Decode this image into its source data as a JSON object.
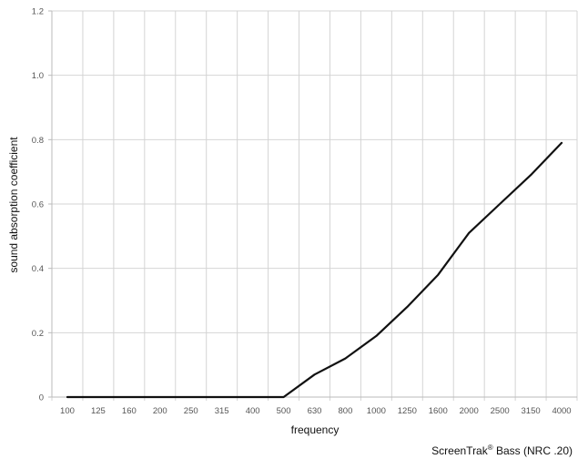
{
  "chart_data": {
    "type": "line",
    "title": "",
    "xlabel": "frequency",
    "ylabel": "sound absorption coefficient",
    "categories": [
      "100",
      "125",
      "160",
      "200",
      "250",
      "315",
      "400",
      "500",
      "630",
      "800",
      "1000",
      "1250",
      "1600",
      "2000",
      "2500",
      "3150",
      "4000"
    ],
    "series": [
      {
        "values": [
          0,
          0,
          0,
          0,
          0,
          0,
          0,
          0,
          0.07,
          0.12,
          0.19,
          0.28,
          0.38,
          0.51,
          0.6,
          0.69,
          0.79
        ]
      }
    ],
    "ylim": [
      0,
      1.2
    ],
    "yticks": [
      "0",
      "0.2",
      "0.4",
      "0.6",
      "0.8",
      "1.0",
      "1.2"
    ],
    "yticks_values": [
      0,
      0.2,
      0.4,
      0.6,
      0.8,
      1.0,
      1.2
    ],
    "grid": true,
    "colors": {
      "line": "#111111",
      "grid": "#d4d4d4",
      "axis": "#bbbbbb"
    }
  },
  "caption": {
    "product": "ScreenTrak",
    "mark": "®",
    "rest": " Bass (NRC .20)"
  }
}
